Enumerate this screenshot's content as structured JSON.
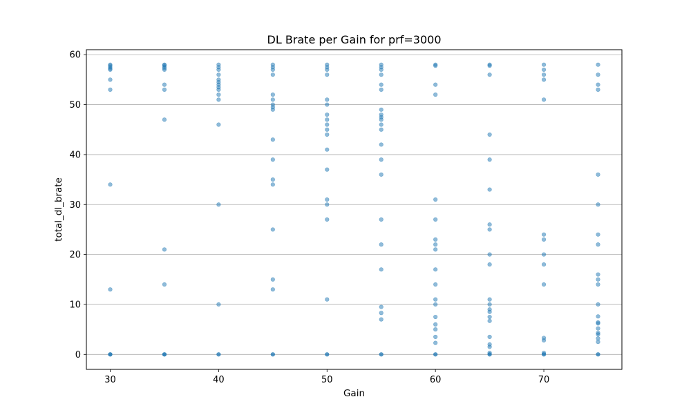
{
  "chart_data": {
    "type": "scatter",
    "title": "DL Brate per Gain for prf=3000",
    "xlabel": "Gain",
    "ylabel": "total_dl_brate",
    "xlim": [
      27.8,
      77.2
    ],
    "ylim": [
      -3,
      61
    ],
    "x_ticks": [
      30,
      40,
      50,
      60,
      70
    ],
    "y_ticks": [
      0,
      10,
      20,
      30,
      40,
      50,
      60
    ],
    "grid": "y-major",
    "marker_color": "#1f77b4",
    "marker_alpha": 0.5,
    "points": [
      {
        "gain": 30,
        "values": [
          58,
          57.8,
          57.5,
          57.2,
          57,
          55,
          53,
          34,
          13,
          0,
          0,
          0
        ]
      },
      {
        "gain": 35,
        "values": [
          58,
          57.9,
          57.6,
          57.3,
          57,
          54,
          53,
          47,
          21,
          14,
          0,
          0,
          0
        ]
      },
      {
        "gain": 40,
        "values": [
          58,
          57.5,
          57,
          56,
          55,
          54.5,
          54,
          53.5,
          53,
          52,
          51,
          46,
          30,
          10,
          0,
          0
        ]
      },
      {
        "gain": 45,
        "values": [
          58,
          57.5,
          57,
          56,
          52,
          51,
          50,
          49.5,
          49,
          43,
          39,
          35,
          34,
          25,
          15,
          13,
          0,
          0
        ]
      },
      {
        "gain": 50,
        "values": [
          58,
          57.5,
          57,
          56,
          51,
          50,
          48,
          47,
          46,
          45,
          44,
          41,
          37,
          31,
          30,
          27,
          11,
          0,
          0
        ]
      },
      {
        "gain": 55,
        "values": [
          58,
          57.5,
          57,
          56,
          54,
          53,
          49,
          48,
          47.5,
          47,
          46,
          45,
          42,
          39,
          36,
          27,
          22,
          17,
          9.5,
          8.3,
          7,
          0,
          0
        ]
      },
      {
        "gain": 60,
        "values": [
          58,
          57.8,
          54,
          52,
          31,
          27,
          23,
          22,
          21,
          17,
          14,
          11,
          10,
          7.5,
          6,
          5,
          3.5,
          2.3,
          0,
          0
        ]
      },
      {
        "gain": 65,
        "values": [
          58,
          57.8,
          56,
          44,
          39,
          33,
          26,
          25,
          20,
          18,
          11,
          10,
          9,
          8.5,
          7.5,
          6.7,
          3.5,
          2,
          1.5,
          0.3,
          0,
          0
        ]
      },
      {
        "gain": 70,
        "values": [
          58,
          57,
          56,
          55,
          51,
          24,
          23,
          20,
          18,
          14,
          3.3,
          2.8,
          0.3,
          0,
          0
        ]
      },
      {
        "gain": 75,
        "values": [
          58,
          56,
          54,
          53,
          36,
          30,
          24,
          22,
          16,
          15,
          14,
          10,
          7.6,
          6.4,
          6.2,
          5.2,
          4.3,
          4,
          3.2,
          2.5,
          0,
          0
        ]
      }
    ]
  }
}
